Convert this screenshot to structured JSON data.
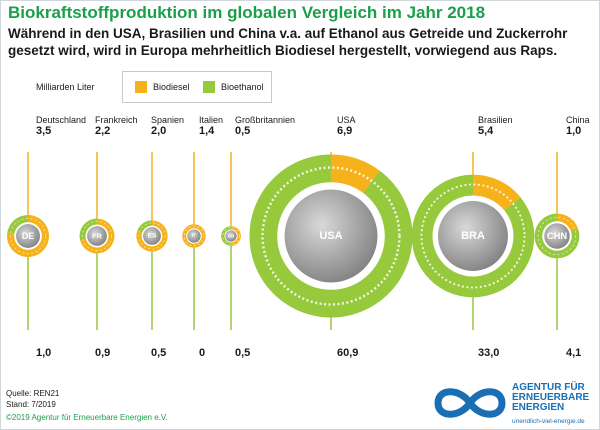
{
  "header": {
    "title": "Biokraftstoffproduktion im globalen Vergleich im Jahr 2018",
    "subtitle": "Während in den USA, Brasilien und China v.a. auf Ethanol aus Getreide und Zuckerrohr gesetzt wird, wird in Europa mehrheitlich Biodiesel hergestellt, vorwiegend aus Raps."
  },
  "colors": {
    "biodiesel": "#f6b21a",
    "bioethanol": "#97c93d",
    "accent": "#1aa049",
    "logo": "#1a6fb4"
  },
  "chart_data": {
    "type": "pie",
    "unit": "Milliarden Liter",
    "legend": [
      "Biodiesel",
      "Bioethanol"
    ],
    "countries": [
      {
        "name": "Deutschland",
        "code": "DE",
        "biodiesel": 3.5,
        "bioethanol": 1.0
      },
      {
        "name": "Frankreich",
        "code": "FR",
        "biodiesel": 2.2,
        "bioethanol": 0.9
      },
      {
        "name": "Spanien",
        "code": "ES",
        "biodiesel": 2.0,
        "bioethanol": 0.5
      },
      {
        "name": "Italien",
        "code": "IT",
        "biodiesel": 1.4,
        "bioethanol": 0
      },
      {
        "name": "Großbritannien",
        "code": "GB",
        "biodiesel": 0.5,
        "bioethanol": 0.5
      },
      {
        "name": "USA",
        "code": "USA",
        "biodiesel": 6.9,
        "bioethanol": 60.9
      },
      {
        "name": "Brasilien",
        "code": "BRA",
        "biodiesel": 5.4,
        "bioethanol": 33.0
      },
      {
        "name": "China",
        "code": "CHN",
        "biodiesel": 1.0,
        "bioethanol": 4.1
      }
    ],
    "value_labels_top": [
      "3,5",
      "2,2",
      "2,0",
      "1,4",
      "0,5",
      "6,9",
      "5,4",
      "1,0"
    ],
    "value_labels_bottom": [
      "1,0",
      "0,9",
      "0,5",
      "0",
      "0,5",
      "60,9",
      "33,0",
      "4,1"
    ]
  },
  "footer": {
    "source": "Quelle: REN21",
    "date": "Stand: 7/2019",
    "copyright": "©2019 Agentur für Erneuerbare Energien e.V."
  },
  "logo": {
    "line1": "AGENTUR FÜR",
    "line2": "ERNEUERBARE",
    "line3": "ENERGIEN",
    "url": "unendlich-viel-energie.de"
  }
}
